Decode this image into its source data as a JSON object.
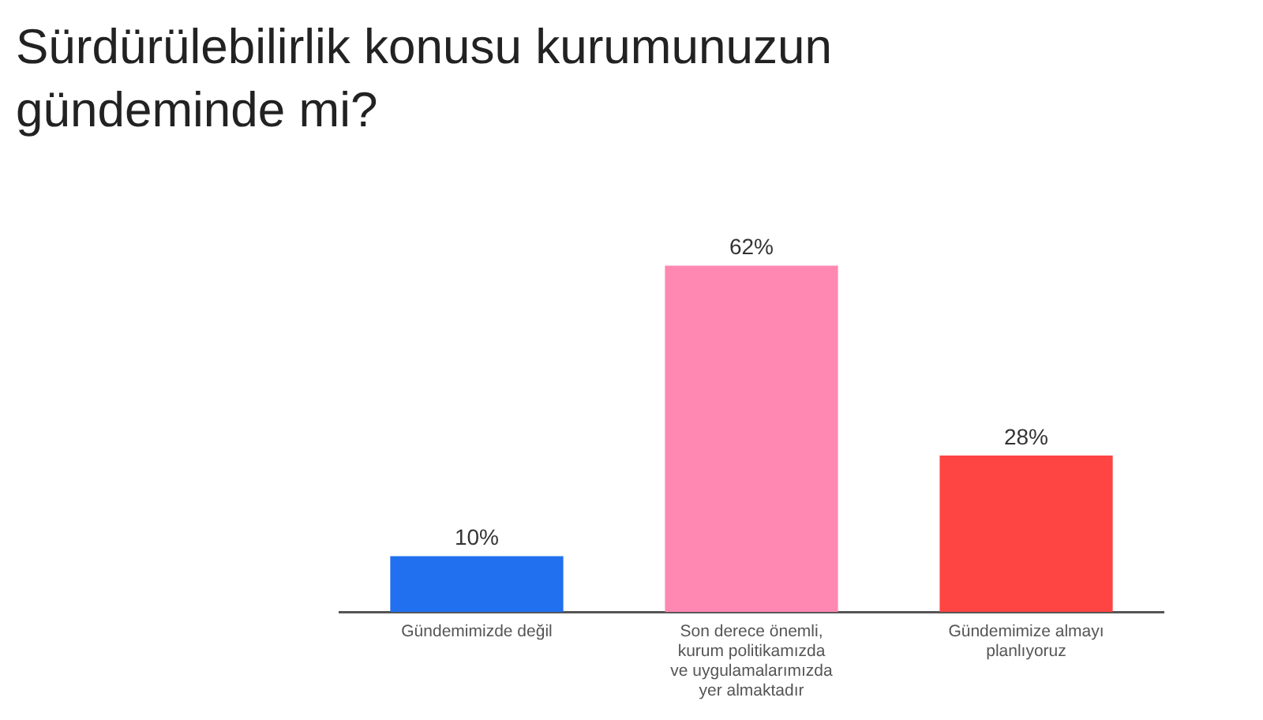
{
  "chart_data": {
    "type": "bar",
    "title": "Sürdürülebilirlik konusu kurumunuzun gündeminde mi?",
    "categories": [
      "Gündemimizde değil",
      "Son derece önemli, kurum politikamızda ve uygulamalarımızda yer almaktadır",
      "Gündemimize almayı planlıyoruz"
    ],
    "values": [
      10,
      62,
      28
    ],
    "colors": [
      "#2070f0",
      "#ff88b2",
      "#ff4444"
    ],
    "value_labels": [
      "10%",
      "62%",
      "28%"
    ],
    "grid": false,
    "legend": false
  }
}
